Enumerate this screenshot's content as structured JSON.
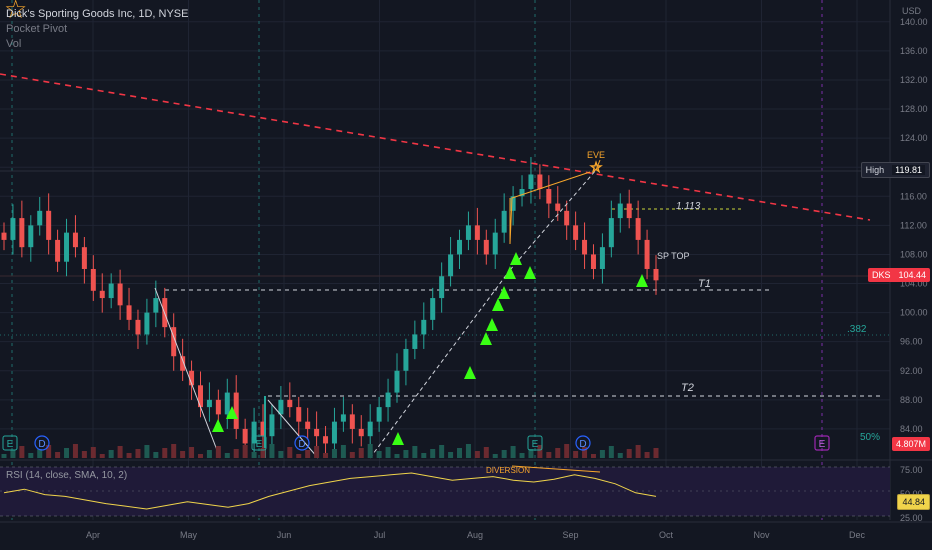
{
  "header": {
    "symbol_title": "Dick's Sporting Goods Inc, 1D, NYSE",
    "indicator_1": "Pocket Pivot",
    "indicator_2": "Vol"
  },
  "currency_label": "USD",
  "price_badges": {
    "high_label": "High",
    "high_value": "119.81",
    "last_symbol": "DKS",
    "last_value": "104.44",
    "volume_value": "4.807M",
    "rsi_value": "44.84"
  },
  "rsi_panel": {
    "legend": "RSI (14, close, SMA, 10, 2)",
    "ticks": [
      "75.00",
      "50.00",
      "25.00"
    ]
  },
  "annotations": {
    "eve": "EVE",
    "target_1113": "1.113",
    "sp_top": "SP TOP",
    "t1": "T1",
    "t2": "T2",
    "fib_382": ".382",
    "fib_50": "50%",
    "divergence": "DIVERSION"
  },
  "events": {
    "earnings_marker": "E",
    "dividend_marker": "D"
  },
  "colors": {
    "background": "#131722",
    "up": "#26a69a",
    "down": "#ef5350",
    "trendline": "#f23645",
    "rsi_line": "#f0d44b",
    "signal": "#39ff14",
    "annotation": "#f7a62b"
  },
  "chart_data": {
    "type": "candlestick",
    "x_axis_labels": [
      "Apr",
      "May",
      "Jun",
      "Jul",
      "Aug",
      "Sep",
      "Oct",
      "Nov",
      "Dec"
    ],
    "y_axis_ticks": [
      140,
      136,
      132,
      128,
      124,
      120,
      116,
      112,
      108,
      104,
      100,
      96,
      92,
      88,
      84
    ],
    "ylim": [
      80,
      143
    ],
    "key_levels": {
      "high": 119.81,
      "last_close": 104.44,
      "t1": 102.6,
      "t2": 86.9,
      "target_1113": 114.5,
      "fib_382": 96.2
    },
    "approx_closes": [
      110,
      113,
      109,
      112,
      114,
      110,
      107,
      111,
      109,
      106,
      103,
      102,
      104,
      101,
      99,
      97,
      100,
      102,
      98,
      94,
      92,
      90,
      87,
      88,
      86,
      89,
      84,
      82,
      85,
      83,
      86,
      88,
      87,
      85,
      84,
      83,
      82,
      85,
      86,
      84,
      83,
      85,
      87,
      89,
      92,
      95,
      97,
      99,
      102,
      105,
      108,
      110,
      112,
      110,
      108,
      111,
      114,
      116,
      117,
      119,
      117,
      115,
      114,
      112,
      110,
      108,
      106,
      109,
      113,
      115,
      113,
      110,
      106,
      104.44
    ],
    "rsi": {
      "ylim": [
        20,
        80
      ],
      "values": [
        48,
        52,
        46,
        44,
        40,
        36,
        33,
        30,
        34,
        38,
        35,
        32,
        36,
        44,
        50,
        56,
        60,
        64,
        66,
        68,
        70,
        66,
        62,
        64,
        66,
        62,
        60,
        63,
        68,
        64,
        58,
        48,
        44
      ]
    }
  }
}
